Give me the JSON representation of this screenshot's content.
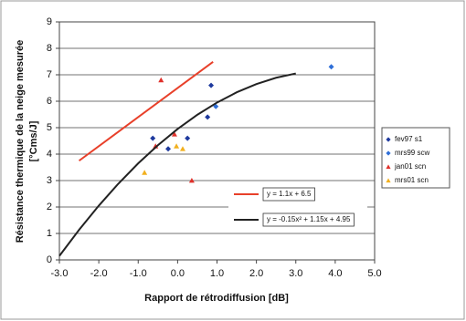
{
  "chart_data": {
    "type": "scatter",
    "xlabel": "Rapport de rétrodiffusion [dB]",
    "ylabel": [
      "Résistance thermique de la neige mesurée",
      "[°Cms/J]"
    ],
    "xlim": [
      -3,
      5
    ],
    "ylim": [
      0,
      9
    ],
    "xticks": [
      {
        "value": -3,
        "label": "-3.0"
      },
      {
        "value": -2,
        "label": "-2.0"
      },
      {
        "value": -1,
        "label": "-1.0"
      },
      {
        "value": 0,
        "label": "0.0"
      },
      {
        "value": 1,
        "label": "1.0"
      },
      {
        "value": 2,
        "label": "2.0"
      },
      {
        "value": 3,
        "label": "3.0"
      },
      {
        "value": 4,
        "label": "4.0"
      },
      {
        "value": 5,
        "label": "5.0"
      }
    ],
    "yticks": [
      0,
      1,
      2,
      3,
      4,
      5,
      6,
      7,
      8,
      9
    ],
    "grid": true,
    "series": [
      {
        "name": "fev97 s1",
        "color": "#1f3a9e",
        "marker": "diamond",
        "x": [
          -0.63,
          -0.24,
          0.25,
          0.76,
          0.85
        ],
        "values": [
          4.6,
          4.2,
          4.6,
          5.4,
          6.6
        ]
      },
      {
        "name": "mrs99 scw",
        "color": "#2f6fd8",
        "marker": "diamond",
        "x": [
          0.97,
          3.9
        ],
        "values": [
          5.8,
          7.3
        ]
      },
      {
        "name": "jan01 scn",
        "color": "#e0302a",
        "marker": "triangle",
        "x": [
          -0.42,
          -0.56,
          -0.08,
          0.36
        ],
        "values": [
          6.8,
          4.3,
          4.75,
          3.0
        ]
      },
      {
        "name": "mrs01 scn",
        "color": "#f2b01e",
        "marker": "triangle",
        "x": [
          -0.84,
          -0.03,
          0.13
        ],
        "values": [
          3.3,
          4.3,
          4.2
        ]
      },
      {
        "name": "y = 1.1x + 6.5",
        "color": "#e8402a",
        "marker": "line",
        "x": [
          -2.5,
          0.9
        ],
        "values": [
          3.75,
          7.49
        ]
      },
      {
        "name": "y = -0.15x² + 1.15x + 4.95",
        "color": "#222222",
        "marker": "line",
        "x": [
          -3,
          -2.5,
          -2,
          -1.5,
          -1,
          -0.5,
          0,
          0.5,
          1,
          1.5,
          2,
          2.5,
          3
        ],
        "values": [
          0.15,
          1.1375,
          2.05,
          2.8875,
          3.65,
          4.3375,
          4.95,
          5.4875,
          5.95,
          6.3375,
          6.65,
          6.8875,
          7.05
        ]
      }
    ]
  }
}
